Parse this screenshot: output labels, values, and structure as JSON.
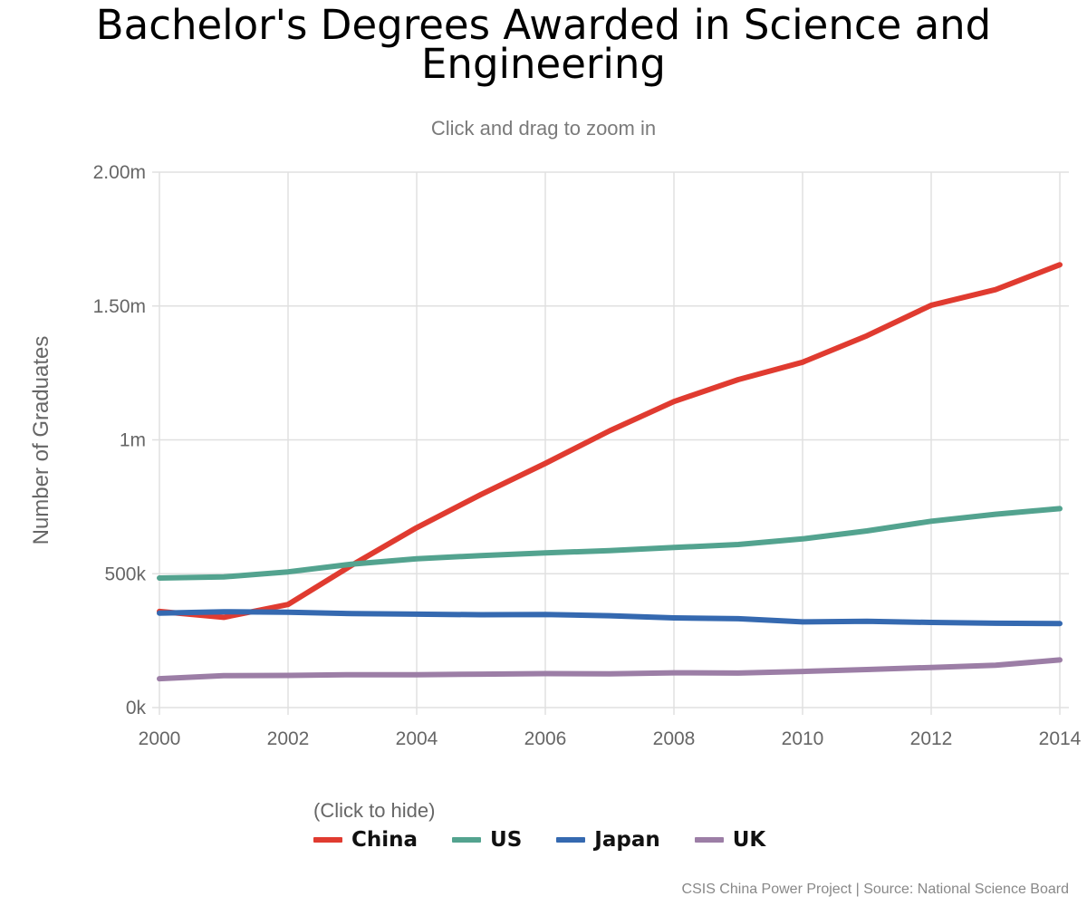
{
  "chart_data": {
    "type": "line",
    "title_lines": [
      "Bachelor's Degrees Awarded in Science and",
      "Engineering"
    ],
    "subtitle": "Click and drag to zoom in",
    "ylabel": "Number of Graduates",
    "xlabel": "",
    "x": [
      2000,
      2001,
      2002,
      2003,
      2004,
      2005,
      2006,
      2007,
      2008,
      2009,
      2010,
      2011,
      2012,
      2013,
      2014
    ],
    "xlim": [
      2000,
      2014
    ],
    "ylim": [
      0,
      2000000
    ],
    "x_ticks": [
      2000,
      2002,
      2004,
      2006,
      2008,
      2010,
      2012,
      2014
    ],
    "x_tick_labels": [
      "2000",
      "2002",
      "2004",
      "2006",
      "2008",
      "2010",
      "2012",
      "2014"
    ],
    "y_ticks": [
      0,
      500000,
      1000000,
      1500000,
      2000000
    ],
    "y_tick_labels": [
      "0k",
      "500k",
      "1m",
      "1.50m",
      "2.00m"
    ],
    "grid": true,
    "legend_position": "bottom",
    "series": [
      {
        "name": "China",
        "color": "#e03b30",
        "values": [
          359000,
          337000,
          385000,
          533000,
          672000,
          796000,
          912000,
          1034000,
          1143000,
          1225000,
          1290000,
          1389000,
          1503000,
          1561000,
          1654000
        ]
      },
      {
        "name": "US",
        "color": "#53a38f",
        "values": [
          484000,
          488000,
          507000,
          536000,
          556000,
          568000,
          578000,
          586000,
          598000,
          609000,
          630000,
          660000,
          696000,
          722000,
          743000
        ]
      },
      {
        "name": "Japan",
        "color": "#3569b0",
        "values": [
          353000,
          358000,
          356000,
          351000,
          349000,
          347000,
          348000,
          343000,
          335000,
          332000,
          320000,
          322000,
          318000,
          315000,
          314000
        ]
      },
      {
        "name": "UK",
        "color": "#9c7ea6",
        "values": [
          108000,
          119000,
          120000,
          123000,
          123000,
          125000,
          127000,
          126000,
          130000,
          129000,
          135000,
          142000,
          150000,
          158000,
          178000
        ]
      }
    ]
  },
  "legend": {
    "hint": "(Click to hide)"
  },
  "credits": "CSIS China Power Project | Source: National Science Board"
}
